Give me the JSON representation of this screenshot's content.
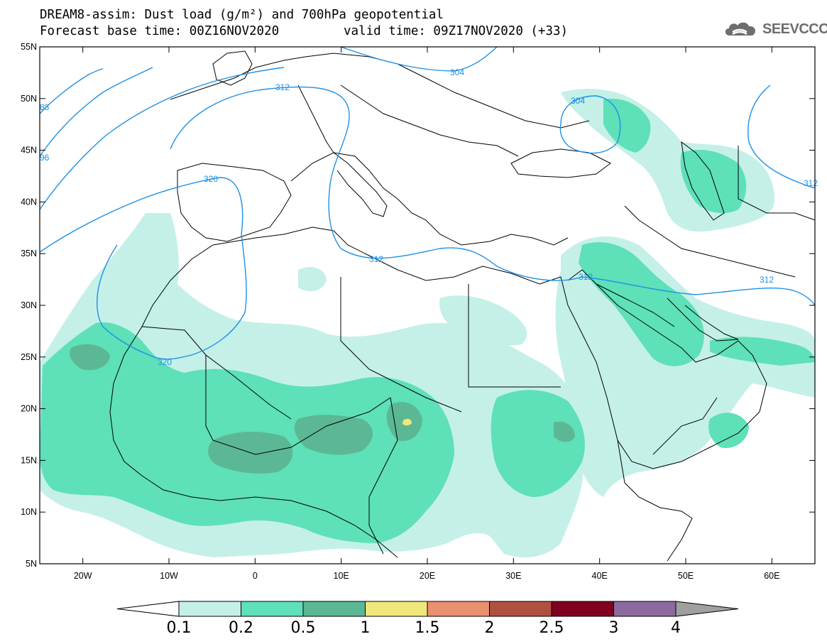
{
  "header": {
    "line1": "DREAM8-assim: Dust load (g/m²) and 700hPa geopotential",
    "line2_base": "Forecast base time: 00Z16NOV2020",
    "line2_valid": "valid time: 09Z17NOV2020 (+33)"
  },
  "logo": {
    "text": "SEEVCCC",
    "icon": "cloud-icon"
  },
  "axes": {
    "lat_labels": [
      "55N",
      "50N",
      "45N",
      "40N",
      "35N",
      "30N",
      "25N",
      "20N",
      "15N",
      "10N",
      "5N"
    ],
    "lon_labels": [
      "20W",
      "10W",
      "0",
      "10E",
      "20E",
      "30E",
      "40E",
      "50E",
      "60E"
    ],
    "lon_range": [
      -25,
      65
    ],
    "lat_range": [
      5,
      55
    ]
  },
  "contour_labels": [
    "304",
    "304",
    "312",
    "312",
    "312",
    "312",
    "312",
    "320",
    "320",
    "88",
    "96",
    "304"
  ],
  "colorbar": {
    "levels": [
      "0.1",
      "0.2",
      "0.5",
      "1",
      "1.5",
      "2",
      "2.5",
      "3",
      "4"
    ],
    "colors": [
      "#c4f0e8",
      "#5ee0b8",
      "#5cb894",
      "#f0e87a",
      "#e89070",
      "#b05040",
      "#800020",
      "#8c6aa0",
      "#a0a0a0"
    ]
  }
}
